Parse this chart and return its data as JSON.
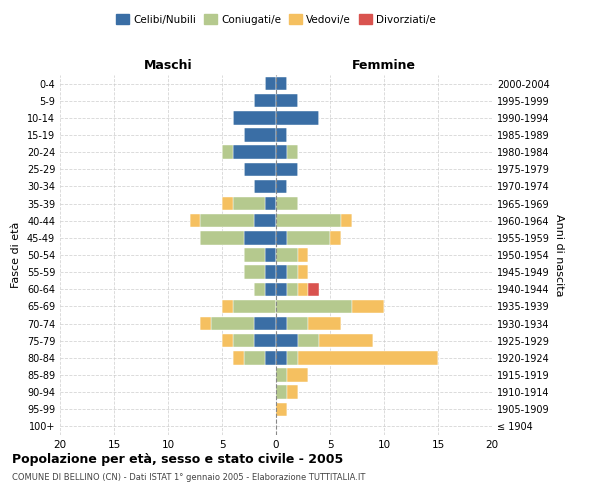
{
  "age_groups": [
    "100+",
    "95-99",
    "90-94",
    "85-89",
    "80-84",
    "75-79",
    "70-74",
    "65-69",
    "60-64",
    "55-59",
    "50-54",
    "45-49",
    "40-44",
    "35-39",
    "30-34",
    "25-29",
    "20-24",
    "15-19",
    "10-14",
    "5-9",
    "0-4"
  ],
  "birth_years": [
    "≤ 1904",
    "1905-1909",
    "1910-1914",
    "1915-1919",
    "1920-1924",
    "1925-1929",
    "1930-1934",
    "1935-1939",
    "1940-1944",
    "1945-1949",
    "1950-1954",
    "1955-1959",
    "1960-1964",
    "1965-1969",
    "1970-1974",
    "1975-1979",
    "1980-1984",
    "1985-1989",
    "1990-1994",
    "1995-1999",
    "2000-2004"
  ],
  "male_celibi": [
    0,
    0,
    0,
    0,
    1,
    2,
    2,
    0,
    1,
    1,
    1,
    3,
    2,
    1,
    2,
    3,
    4,
    3,
    4,
    2,
    1
  ],
  "male_coniugati": [
    0,
    0,
    0,
    0,
    2,
    2,
    4,
    4,
    1,
    2,
    2,
    4,
    5,
    3,
    0,
    0,
    1,
    0,
    0,
    0,
    0
  ],
  "male_vedovi": [
    0,
    0,
    0,
    0,
    1,
    1,
    1,
    1,
    0,
    0,
    0,
    0,
    1,
    1,
    0,
    0,
    0,
    0,
    0,
    0,
    0
  ],
  "male_divorziati": [
    0,
    0,
    0,
    0,
    0,
    0,
    0,
    0,
    0,
    0,
    0,
    0,
    0,
    0,
    0,
    0,
    0,
    0,
    0,
    0,
    0
  ],
  "female_celibi": [
    0,
    0,
    0,
    0,
    1,
    2,
    1,
    0,
    1,
    1,
    0,
    1,
    0,
    0,
    1,
    2,
    1,
    1,
    4,
    2,
    1
  ],
  "female_coniugati": [
    0,
    0,
    1,
    1,
    1,
    2,
    2,
    7,
    1,
    1,
    2,
    4,
    6,
    2,
    0,
    0,
    1,
    0,
    0,
    0,
    0
  ],
  "female_vedovi": [
    0,
    1,
    1,
    2,
    13,
    5,
    3,
    3,
    1,
    1,
    1,
    1,
    1,
    0,
    0,
    0,
    0,
    0,
    0,
    0,
    0
  ],
  "female_divorziati": [
    0,
    0,
    0,
    0,
    0,
    0,
    0,
    0,
    1,
    0,
    0,
    0,
    0,
    0,
    0,
    0,
    0,
    0,
    0,
    0,
    0
  ],
  "color_celibi": "#3a6ea5",
  "color_coniugati": "#b5c98e",
  "color_vedovi": "#f5c060",
  "color_divorziati": "#d9534f",
  "title": "Popolazione per età, sesso e stato civile - 2005",
  "subtitle": "COMUNE DI BELLINO (CN) - Dati ISTAT 1° gennaio 2005 - Elaborazione TUTTITALIA.IT",
  "xlabel_left": "Maschi",
  "xlabel_right": "Femmine",
  "ylabel_left": "Fasce di età",
  "ylabel_right": "Anni di nascita",
  "xlim": 20,
  "bg_color": "#ffffff",
  "grid_color": "#cccccc"
}
